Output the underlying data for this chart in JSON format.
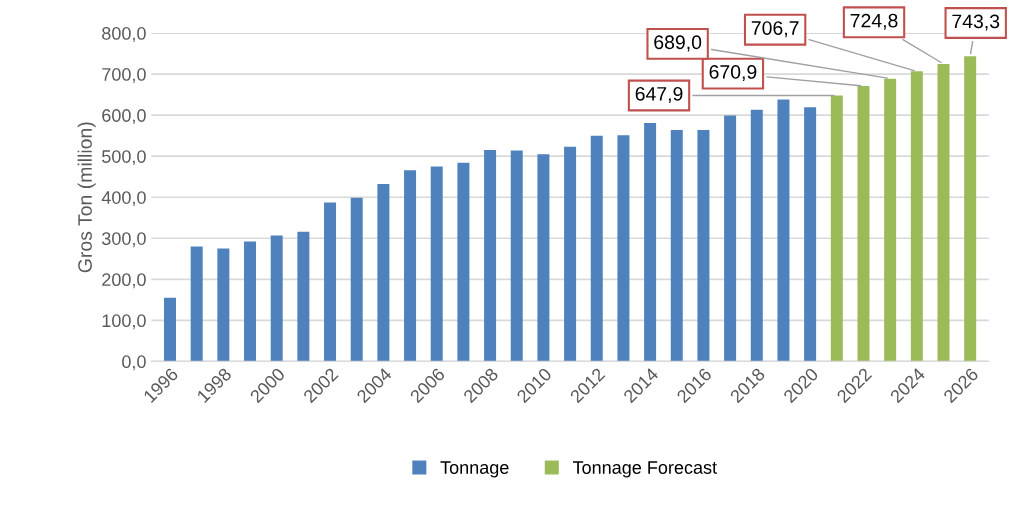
{
  "chart_data": {
    "type": "bar",
    "ylabel": "Gros Ton (million)",
    "categories": [
      "1996",
      null,
      "1998",
      null,
      "2000",
      null,
      "2002",
      null,
      "2004",
      null,
      "2006",
      null,
      "2008",
      null,
      "2010",
      null,
      "2012",
      null,
      "2014",
      null,
      "2016",
      null,
      "2018",
      null,
      "2020",
      null,
      "2022",
      null,
      "2024",
      null,
      "2026"
    ],
    "series": [
      {
        "name": "Tonnage",
        "color": "#4f81bd",
        "values": [
          155,
          280,
          275,
          292,
          307,
          316,
          387,
          399,
          432,
          466,
          475,
          484,
          515,
          514,
          505,
          523,
          550,
          551,
          581,
          564,
          564,
          599,
          613,
          638,
          619,
          null,
          null,
          null,
          null,
          null,
          null
        ]
      },
      {
        "name": "Tonnage Forecast",
        "color": "#9bbb59",
        "values": [
          null,
          null,
          null,
          null,
          null,
          null,
          null,
          null,
          null,
          null,
          null,
          null,
          null,
          null,
          null,
          null,
          null,
          null,
          null,
          null,
          null,
          null,
          null,
          null,
          null,
          647.9,
          670.9,
          689.0,
          706.7,
          724.8,
          743.3
        ],
        "value_labels": [
          null,
          null,
          null,
          null,
          null,
          null,
          null,
          null,
          null,
          null,
          null,
          null,
          null,
          null,
          null,
          null,
          null,
          null,
          null,
          null,
          null,
          null,
          null,
          null,
          null,
          "647,9",
          "670,9",
          "689,0",
          "706,7",
          "724,8",
          "743,3"
        ]
      }
    ],
    "ylim": [
      0,
      800
    ],
    "yticks": [
      {
        "value": 0,
        "label": "0,0"
      },
      {
        "value": 100,
        "label": "100,0"
      },
      {
        "value": 200,
        "label": "200,0"
      },
      {
        "value": 300,
        "label": "300,0"
      },
      {
        "value": 400,
        "label": "400,0"
      },
      {
        "value": 500,
        "label": "500,0"
      },
      {
        "value": 600,
        "label": "600,0"
      },
      {
        "value": 700,
        "label": "700,0"
      },
      {
        "value": 800,
        "label": "800,0"
      }
    ],
    "grid": "y",
    "legend": "bottom"
  }
}
